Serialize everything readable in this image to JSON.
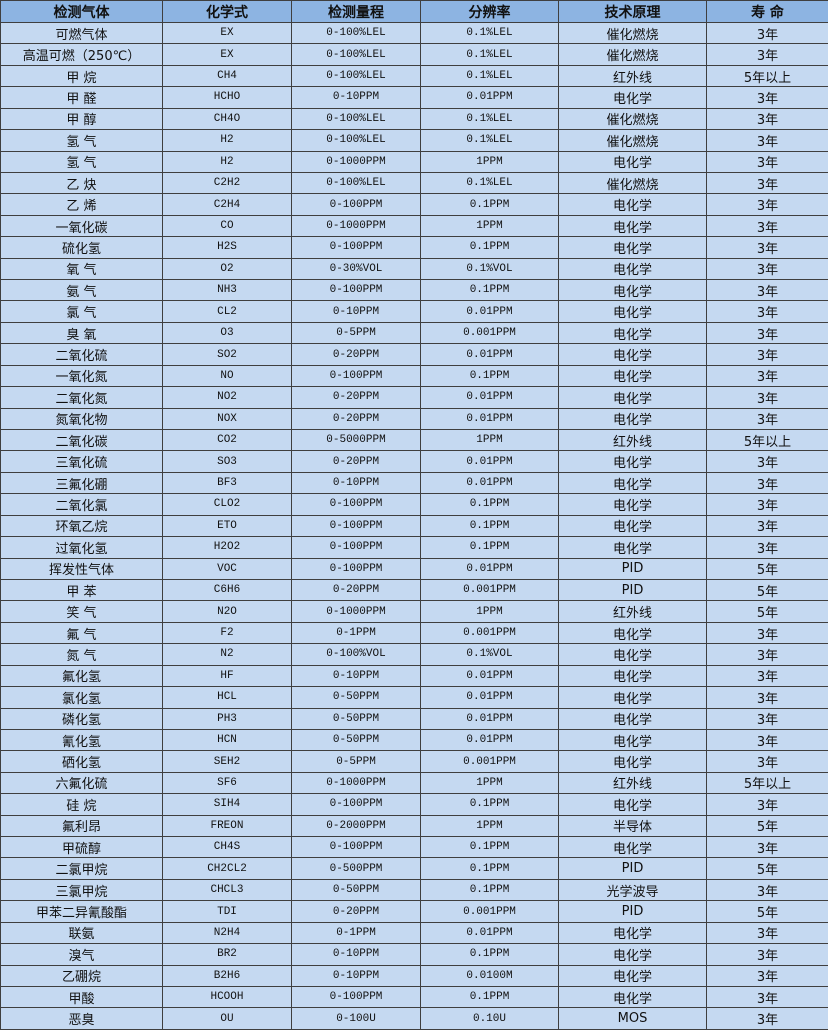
{
  "table": {
    "headers": [
      "检测气体",
      "化学式",
      "检测量程",
      "分辨率",
      "技术原理",
      "寿 命"
    ],
    "rows": [
      [
        "可燃气体",
        "EX",
        "0-100%LEL",
        "0.1%LEL",
        "催化燃烧",
        "3年"
      ],
      [
        "高温可燃（250℃）",
        "EX",
        "0-100%LEL",
        "0.1%LEL",
        "催化燃烧",
        "3年"
      ],
      [
        "甲 烷",
        "CH4",
        "0-100%LEL",
        "0.1%LEL",
        "红外线",
        "5年以上"
      ],
      [
        "甲 醛",
        "HCHO",
        "0-10PPM",
        "0.01PPM",
        "电化学",
        "3年"
      ],
      [
        "甲 醇",
        "CH4O",
        "0-100%LEL",
        "0.1%LEL",
        "催化燃烧",
        "3年"
      ],
      [
        "氢 气",
        "H2",
        "0-100%LEL",
        "0.1%LEL",
        "催化燃烧",
        "3年"
      ],
      [
        "氢 气",
        "H2",
        "0-1000PPM",
        "1PPM",
        "电化学",
        "3年"
      ],
      [
        "乙 炔",
        "C2H2",
        "0-100%LEL",
        "0.1%LEL",
        "催化燃烧",
        "3年"
      ],
      [
        "乙 烯",
        "C2H4",
        "0-100PPM",
        "0.1PPM",
        "电化学",
        "3年"
      ],
      [
        "一氧化碳",
        "CO",
        "0-1000PPM",
        "1PPM",
        "电化学",
        "3年"
      ],
      [
        "硫化氢",
        "H2S",
        "0-100PPM",
        "0.1PPM",
        "电化学",
        "3年"
      ],
      [
        "氧 气",
        "O2",
        "0-30%VOL",
        "0.1%VOL",
        "电化学",
        "3年"
      ],
      [
        "氨 气",
        "NH3",
        "0-100PPM",
        "0.1PPM",
        "电化学",
        "3年"
      ],
      [
        "氯 气",
        "CL2",
        "0-10PPM",
        "0.01PPM",
        "电化学",
        "3年"
      ],
      [
        "臭 氧",
        "O3",
        "0-5PPM",
        "0.001PPM",
        "电化学",
        "3年"
      ],
      [
        "二氧化硫",
        "SO2",
        "0-20PPM",
        "0.01PPM",
        "电化学",
        "3年"
      ],
      [
        "一氧化氮",
        "NO",
        "0-100PPM",
        "0.1PPM",
        "电化学",
        "3年"
      ],
      [
        "二氧化氮",
        "NO2",
        "0-20PPM",
        "0.01PPM",
        "电化学",
        "3年"
      ],
      [
        "氮氧化物",
        "NOX",
        "0-20PPM",
        "0.01PPM",
        "电化学",
        "3年"
      ],
      [
        "二氧化碳",
        "CO2",
        "0-5000PPM",
        "1PPM",
        "红外线",
        "5年以上"
      ],
      [
        "三氧化硫",
        "SO3",
        "0-20PPM",
        "0.01PPM",
        "电化学",
        "3年"
      ],
      [
        "三氟化硼",
        "BF3",
        "0-10PPM",
        "0.01PPM",
        "电化学",
        "3年"
      ],
      [
        "二氧化氯",
        "CLO2",
        "0-100PPM",
        "0.1PPM",
        "电化学",
        "3年"
      ],
      [
        "环氧乙烷",
        "ETO",
        "0-100PPM",
        "0.1PPM",
        "电化学",
        "3年"
      ],
      [
        "过氧化氢",
        "H2O2",
        "0-100PPM",
        "0.1PPM",
        "电化学",
        "3年"
      ],
      [
        "挥发性气体",
        "VOC",
        "0-100PPM",
        "0.01PPM",
        "PID",
        "5年"
      ],
      [
        "甲 苯",
        "C6H6",
        "0-20PPM",
        "0.001PPM",
        "PID",
        "5年"
      ],
      [
        "笑 气",
        "N2O",
        "0-1000PPM",
        "1PPM",
        "红外线",
        "5年"
      ],
      [
        "氟 气",
        "F2",
        "0-1PPM",
        "0.001PPM",
        "电化学",
        "3年"
      ],
      [
        "氮 气",
        "N2",
        "0-100%VOL",
        "0.1%VOL",
        "电化学",
        "3年"
      ],
      [
        "氟化氢",
        "HF",
        "0-10PPM",
        "0.01PPM",
        "电化学",
        "3年"
      ],
      [
        "氯化氢",
        "HCL",
        "0-50PPM",
        "0.01PPM",
        "电化学",
        "3年"
      ],
      [
        "磷化氢",
        "PH3",
        "0-50PPM",
        "0.01PPM",
        "电化学",
        "3年"
      ],
      [
        "氰化氢",
        "HCN",
        "0-50PPM",
        "0.01PPM",
        "电化学",
        "3年"
      ],
      [
        "硒化氢",
        "SEH2",
        "0-5PPM",
        "0.001PPM",
        "电化学",
        "3年"
      ],
      [
        "六氟化硫",
        "SF6",
        "0-1000PPM",
        "1PPM",
        "红外线",
        "5年以上"
      ],
      [
        "硅 烷",
        "SIH4",
        "0-100PPM",
        "0.1PPM",
        "电化学",
        "3年"
      ],
      [
        "氟利昂",
        "FREON",
        "0-2000PPM",
        "1PPM",
        "半导体",
        "5年"
      ],
      [
        "甲硫醇",
        "CH4S",
        "0-100PPM",
        "0.1PPM",
        "电化学",
        "3年"
      ],
      [
        "二氯甲烷",
        "CH2CL2",
        "0-500PPM",
        "0.1PPM",
        "PID",
        "5年"
      ],
      [
        "三氯甲烷",
        "CHCL3",
        "0-50PPM",
        "0.1PPM",
        "光学波导",
        "3年"
      ],
      [
        "甲苯二异氰酸酯",
        "TDI",
        "0-20PPM",
        "0.001PPM",
        "PID",
        "5年"
      ],
      [
        "联氨",
        "N2H4",
        "0-1PPM",
        "0.01PPM",
        "电化学",
        "3年"
      ],
      [
        "溴气",
        "BR2",
        "0-10PPM",
        "0.1PPM",
        "电化学",
        "3年"
      ],
      [
        "乙硼烷",
        "B2H6",
        "0-10PPM",
        "0.0100M",
        "电化学",
        "3年"
      ],
      [
        "甲酸",
        "HCOOH",
        "0-100PPM",
        "0.1PPM",
        "电化学",
        "3年"
      ],
      [
        "恶臭",
        "OU",
        "0-100U",
        "0.10U",
        "MOS",
        "3年"
      ]
    ]
  }
}
